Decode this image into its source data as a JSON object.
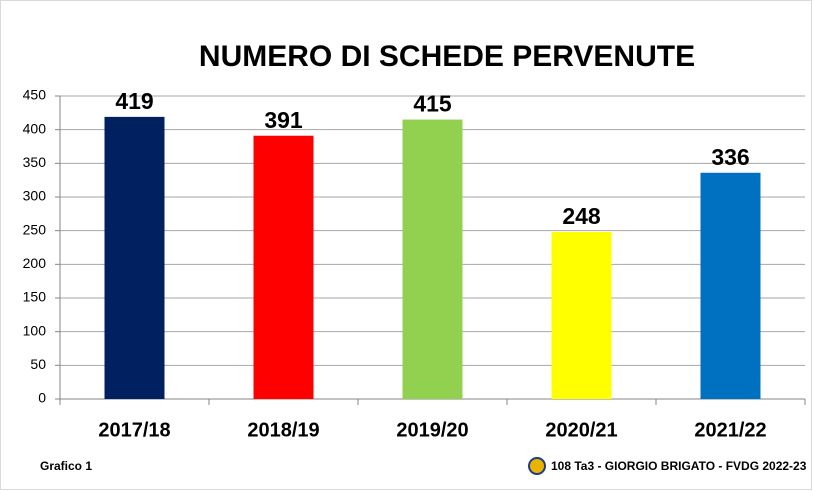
{
  "chart_data": {
    "type": "bar",
    "title": "NUMERO DI SCHEDE PERVENUTE",
    "categories": [
      "2017/18",
      "2018/19",
      "2019/20",
      "2020/21",
      "2021/22"
    ],
    "values": [
      419,
      391,
      415,
      248,
      336
    ],
    "colors": [
      "#002060",
      "#ff0000",
      "#92d050",
      "#ffff00",
      "#0070c0"
    ],
    "ylim": [
      0,
      450
    ],
    "yticks": [
      0,
      50,
      100,
      150,
      200,
      250,
      300,
      350,
      400,
      450
    ],
    "grid": true,
    "annotations": [
      "Grafico 1",
      "108 Ta3 - GIORGIO BRIGATO - FVDG 2022-23"
    ]
  }
}
